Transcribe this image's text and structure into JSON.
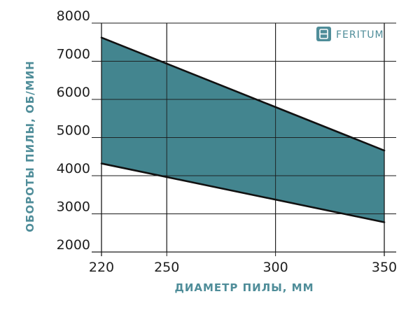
{
  "brand": {
    "name": "FERITUM",
    "icon": "feritum-logo-icon",
    "color": "#4f8d99"
  },
  "chart_data": {
    "type": "area",
    "xlabel": "ДИАМЕТР ПИЛЫ, ММ",
    "ylabel": "ОБОРОТЫ ПИЛЫ, ОБ/МИН",
    "xlim": [
      220,
      350
    ],
    "ylim": [
      2000,
      8000
    ],
    "x_ticks": [
      220,
      250,
      300,
      350
    ],
    "y_ticks": [
      2000,
      3000,
      4000,
      5000,
      6000,
      7000,
      8000
    ],
    "grid": true,
    "series": [
      {
        "role": "upper",
        "x": [
          220,
          350
        ],
        "y": [
          7620,
          4660
        ]
      },
      {
        "role": "lower",
        "x": [
          220,
          350
        ],
        "y": [
          4320,
          2780
        ]
      }
    ],
    "colors": {
      "fill": "#43858f",
      "line": "#111111",
      "grid": "#1a1a1a",
      "tick": "#1f1f1f",
      "axis_title": "#4f8d99"
    }
  }
}
